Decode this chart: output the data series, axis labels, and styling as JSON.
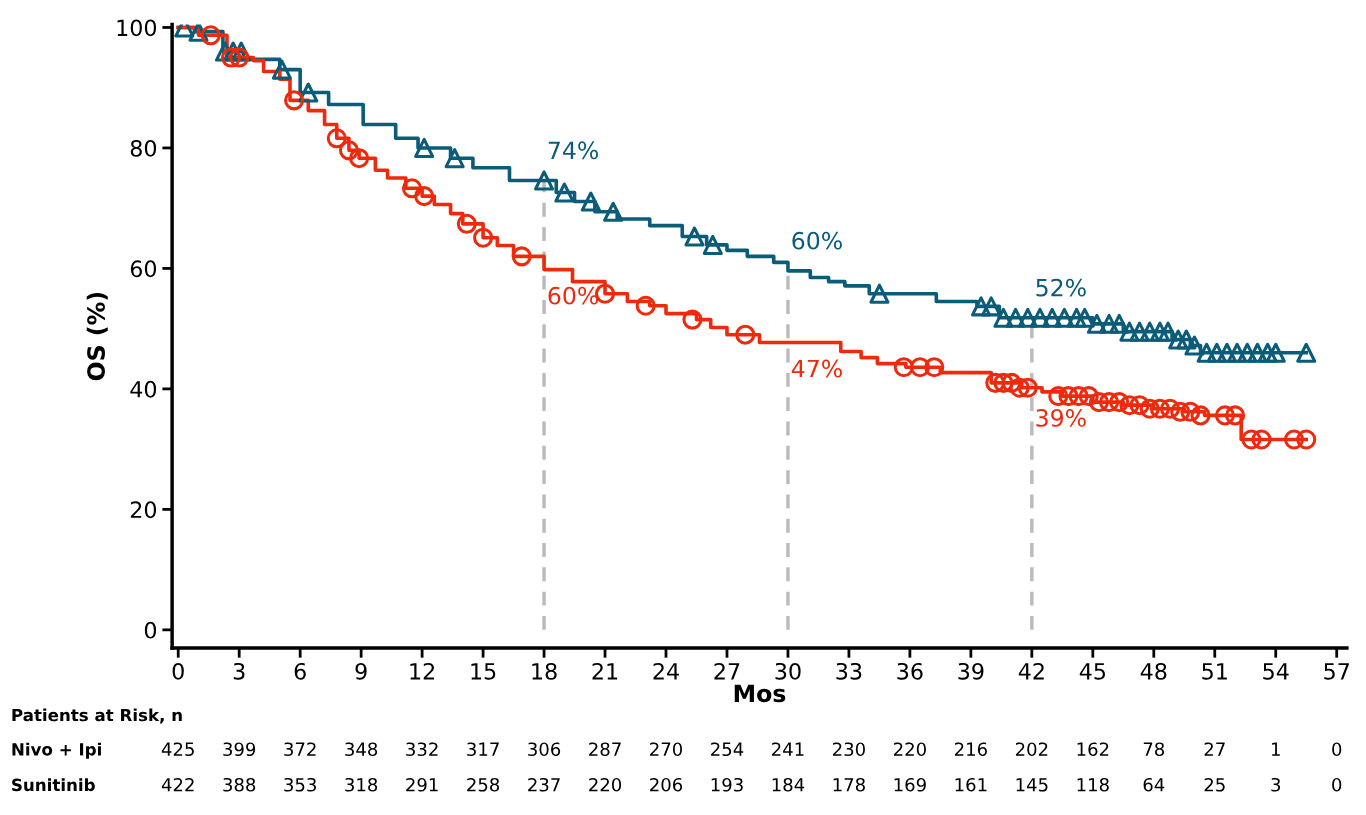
{
  "chart_data": {
    "type": "step",
    "xlabel": "Mos",
    "ylabel": "OS (%)",
    "xlim": [
      -0.3,
      57.5
    ],
    "ylim": [
      -3,
      100.5
    ],
    "xticks": [
      0,
      3,
      6,
      9,
      12,
      15,
      18,
      21,
      24,
      27,
      30,
      33,
      36,
      39,
      42,
      45,
      48,
      51,
      54,
      57
    ],
    "yticks": [
      0,
      20,
      40,
      60,
      80,
      100
    ],
    "grid": false,
    "series": [
      {
        "color": "#0b5c78",
        "marker": "none",
        "x": [
          0,
          0.8,
          2.2,
          3.2,
          5,
          6,
          7.4,
          9.1,
          10.7,
          11.8,
          13.4,
          14.5,
          16.3,
          18.6,
          19.5,
          20.5,
          21.6,
          23.2,
          24.8,
          26,
          27,
          28,
          29.3,
          30,
          31.1,
          32,
          32.8,
          34,
          37.3,
          39.3,
          40.4,
          45,
          46.5,
          48.9,
          49.8,
          50.3,
          55.5
        ],
        "values": [
          100,
          99.3,
          96,
          94.7,
          93,
          89.2,
          87.2,
          83.9,
          81.6,
          80,
          78.3,
          76.7,
          74.6,
          72.6,
          71.1,
          69.4,
          68.2,
          67.1,
          65.3,
          63.9,
          63,
          62,
          61,
          59.6,
          58.5,
          57.8,
          57.1,
          55.8,
          54.5,
          53.7,
          51.8,
          50.8,
          49.5,
          48.2,
          47.2,
          46,
          46
        ]
      },
      {
        "type": "scatter",
        "color": "#0b5c78",
        "marker": "triangle",
        "x": [
          0.3,
          1,
          2.3,
          2.7,
          3.1,
          5.1,
          6.4,
          12.1,
          13.6,
          18,
          19,
          20.3,
          21.4,
          25.4,
          26.3,
          34.5,
          39.5,
          40,
          40.6,
          41.2,
          41.8,
          42.4,
          43,
          43.6,
          44.2,
          44.6,
          45.2,
          45.8,
          46.3,
          46.8,
          47.3,
          47.8,
          48.3,
          48.7,
          49.2,
          49.6,
          50,
          50.6,
          51.1,
          51.6,
          52.1,
          52.6,
          53.1,
          53.6,
          54,
          55.5
        ],
        "values": [
          100,
          99.3,
          96,
          96,
          96,
          93,
          89.2,
          80,
          78.3,
          74.6,
          72.6,
          71.1,
          69.4,
          65.3,
          63.9,
          55.8,
          53.7,
          53.7,
          51.8,
          51.8,
          51.8,
          51.8,
          51.8,
          51.8,
          51.8,
          51.8,
          50.8,
          50.8,
          50.8,
          49.5,
          49.5,
          49.5,
          49.5,
          49.5,
          48.2,
          48.2,
          47.2,
          46,
          46,
          46,
          46,
          46,
          46,
          46,
          46,
          46
        ]
      },
      {
        "color": "#ee2a0c",
        "marker": "none",
        "x": [
          0,
          1,
          2.4,
          3.7,
          4.2,
          5,
          5.5,
          6.4,
          7.2,
          7.8,
          8.4,
          8.9,
          9.7,
          10.3,
          11.2,
          12,
          12.6,
          13.4,
          14,
          15,
          15.7,
          16.5,
          18,
          19.4,
          21,
          22.1,
          23.2,
          24,
          25.5,
          26.2,
          27,
          28.6,
          32.6,
          33.6,
          34.4,
          35.8,
          37.5,
          40,
          41.5,
          42.5,
          43.5,
          45,
          46.5,
          48,
          49.5,
          50.5,
          52.3,
          55.5
        ],
        "values": [
          100,
          98.7,
          95,
          94.5,
          92.7,
          91.4,
          87.9,
          86.2,
          83.9,
          81.6,
          79.6,
          78.3,
          76.3,
          75,
          73.3,
          72,
          70.6,
          69.1,
          67.4,
          65.1,
          63.8,
          62,
          59.8,
          57.8,
          55.8,
          54.5,
          53.8,
          52.5,
          51.5,
          50.2,
          49,
          47.7,
          46.2,
          45.2,
          44.2,
          43.6,
          42.7,
          41,
          40.2,
          39.5,
          38.8,
          37.8,
          37.3,
          36.7,
          36.2,
          35.6,
          31.6,
          31.6
        ]
      },
      {
        "type": "scatter",
        "color": "#ee2a0c",
        "marker": "circle",
        "x": [
          1.6,
          2.6,
          3,
          5.7,
          7.8,
          8.4,
          8.9,
          11.5,
          12.1,
          14.2,
          15,
          16.9,
          21,
          23,
          25.3,
          27.9,
          35.7,
          36.5,
          37.2,
          40.2,
          40.6,
          41,
          41.4,
          41.8,
          43.3,
          43.8,
          44.3,
          44.8,
          45.3,
          45.8,
          46.3,
          46.8,
          47.3,
          47.8,
          48.3,
          48.8,
          49.3,
          49.8,
          50.3,
          51.5,
          52,
          52.8,
          53.3,
          54.9,
          55.5
        ],
        "values": [
          98.7,
          95,
          95,
          87.9,
          81.6,
          79.6,
          78.3,
          73.3,
          72,
          67.4,
          65.1,
          62,
          55.8,
          53.8,
          51.5,
          49,
          43.6,
          43.6,
          43.6,
          41,
          41,
          41,
          40.2,
          40.2,
          38.8,
          38.8,
          38.8,
          38.8,
          37.8,
          37.8,
          37.8,
          37.3,
          37.3,
          36.7,
          36.7,
          36.7,
          36.2,
          36.2,
          35.6,
          35.6,
          35.6,
          31.6,
          31.6,
          31.6,
          31.6
        ]
      }
    ],
    "ref_lines": [
      {
        "axis": "x",
        "value": 18,
        "color": "#bbbbbb",
        "line_style": "dashed"
      },
      {
        "axis": "x",
        "value": 30,
        "color": "#bbbbbb",
        "line_style": "dashed"
      },
      {
        "axis": "x",
        "value": 42,
        "color": "#bbbbbb",
        "line_style": "dashed"
      }
    ],
    "annotations": [
      {
        "text": "74%",
        "x": 18,
        "y": 74.6
      },
      {
        "text": "60%",
        "x": 18,
        "y": 59.8
      },
      {
        "text": "60%",
        "x": 30,
        "y": 59.6
      },
      {
        "text": "47%",
        "x": 30,
        "y": 47.7
      },
      {
        "text": "52%",
        "x": 42,
        "y": 51.8
      },
      {
        "text": "39%",
        "x": 42,
        "y": 39.5
      },
      "Patients at Risk, n",
      "Nivo + Ipi",
      "425",
      "399",
      "372",
      "348",
      "332",
      "317",
      "306",
      "287",
      "270",
      "254",
      "241",
      "230",
      "220",
      "216",
      "202",
      "162",
      "78",
      "27",
      "1",
      "0",
      "Sunitinib",
      "422",
      "388",
      "353",
      "318",
      "291",
      "258",
      "237",
      "220",
      "206",
      "193",
      "184",
      "178",
      "169",
      "161",
      "145",
      "118",
      "64",
      "25",
      "3",
      "0"
    ]
  }
}
